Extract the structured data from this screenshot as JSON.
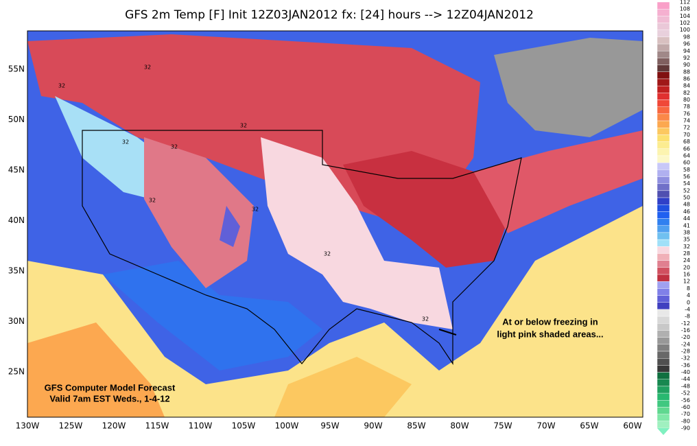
{
  "header": {
    "title": "GFS 2m Temp [F] Init 12Z03JAN2012 fx: [24] hours --> 12Z04JAN2012"
  },
  "map": {
    "lat_labels": [
      "55N",
      "50N",
      "45N",
      "40N",
      "35N",
      "30N",
      "25N"
    ],
    "lon_labels": [
      "130W",
      "125W",
      "120W",
      "115W",
      "110W",
      "105W",
      "100W",
      "95W",
      "90W",
      "85W",
      "80W",
      "75W",
      "70W",
      "65W",
      "60W"
    ],
    "contour_labels": [
      "32",
      "32",
      "32",
      "32",
      "32",
      "32",
      "32",
      "32",
      "32"
    ],
    "annotation": [
      "At or below freezing in",
      "light pink shaded areas..."
    ],
    "caption": [
      "GFS Computer Model Forecast",
      "Valid 7am EST Weds., 1-4-12"
    ]
  },
  "colorbar": {
    "labels": [
      "112",
      "108",
      "104",
      "102",
      "100",
      "98",
      "96",
      "94",
      "92",
      "90",
      "88",
      "86",
      "84",
      "82",
      "80",
      "78",
      "76",
      "74",
      "72",
      "70",
      "68",
      "66",
      "64",
      "60",
      "58",
      "56",
      "54",
      "52",
      "50",
      "48",
      "46",
      "44",
      "41",
      "38",
      "35",
      "32",
      "28",
      "24",
      "20",
      "16",
      "12",
      "8",
      "4",
      "0",
      "-4",
      "-8",
      "-12",
      "-16",
      "-20",
      "-24",
      "-28",
      "-32",
      "-36",
      "-40",
      "-44",
      "-48",
      "-52",
      "-56",
      "-60",
      "-70",
      "-80",
      "-90"
    ],
    "colors": [
      "#f9a0c8",
      "#f5b0d0",
      "#f0bcd4",
      "#eac8d8",
      "#e8d0dc",
      "#d8c0c0",
      "#c0a8a8",
      "#a08888",
      "#806060",
      "#603838",
      "#801010",
      "#a01818",
      "#c02020",
      "#e03030",
      "#f04838",
      "#f86840",
      "#fa8848",
      "#fca850",
      "#fcc860",
      "#fce070",
      "#fcec90",
      "#fcf4b0",
      "#fcf8c8",
      "#c8c8f8",
      "#b0b0f0",
      "#9090e0",
      "#7070c8",
      "#5050b0",
      "#3040c8",
      "#2050e0",
      "#2060f0",
      "#3080f0",
      "#50a0f0",
      "#70c0f0",
      "#a0e0f8",
      "#f8d8e0",
      "#f0b0b8",
      "#e08090",
      "#d05060",
      "#c03040",
      "#a0a0f0",
      "#8080e8",
      "#6060d8",
      "#4040c0",
      "#e8e8e8",
      "#d8d8d8",
      "#c8c8c8",
      "#b0b0b0",
      "#989898",
      "#808080",
      "#686868",
      "#505050",
      "#383838",
      "#107040",
      "#188850",
      "#20a060",
      "#28b870",
      "#40c880",
      "#60d890",
      "#80e8a8",
      "#a0f0c0",
      "#80f0c0"
    ]
  }
}
